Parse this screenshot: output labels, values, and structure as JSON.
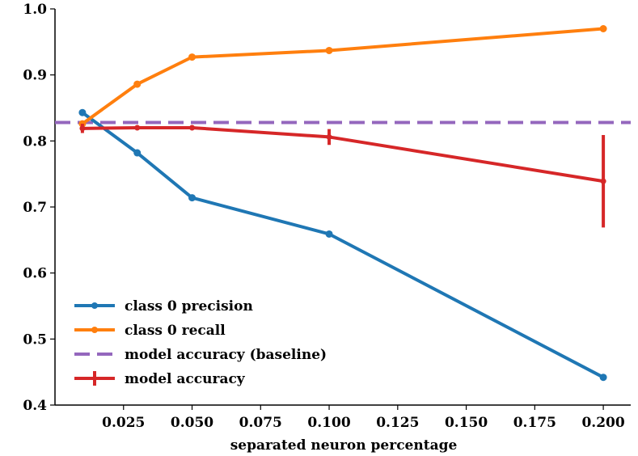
{
  "chart_data": {
    "type": "line",
    "title": "",
    "xlabel": "separated neuron percentage",
    "ylabel": "",
    "xlim": [
      0.0,
      0.21
    ],
    "ylim": [
      0.4,
      1.0
    ],
    "xticks": [
      0.025,
      0.05,
      0.075,
      0.1,
      0.125,
      0.15,
      0.175,
      0.2
    ],
    "xtick_labels": [
      "0.025",
      "0.050",
      "0.075",
      "0.100",
      "0.125",
      "0.150",
      "0.175",
      "0.200"
    ],
    "yticks": [
      0.4,
      0.5,
      0.6,
      0.7,
      0.8,
      0.9,
      1.0
    ],
    "ytick_labels": [
      "0.4",
      "0.5",
      "0.6",
      "0.7",
      "0.8",
      "0.9",
      "1.0"
    ],
    "grid": false,
    "legend_position": "bottom-left",
    "series": [
      {
        "name": "class 0 precision",
        "color": "#1f77b4",
        "style": "solid-marker",
        "x": [
          0.01,
          0.03,
          0.05,
          0.1,
          0.2
        ],
        "values": [
          0.843,
          0.782,
          0.714,
          0.659,
          0.442
        ]
      },
      {
        "name": "class 0 recall",
        "color": "#ff7f0e",
        "style": "solid-marker",
        "x": [
          0.01,
          0.03,
          0.05,
          0.1,
          0.2
        ],
        "values": [
          0.826,
          0.886,
          0.927,
          0.937,
          0.97
        ]
      },
      {
        "name": "model accuracy (baseline)",
        "color": "#9467bd",
        "style": "dashed",
        "x": [
          0.0,
          0.21
        ],
        "values": [
          0.828,
          0.828
        ]
      },
      {
        "name": "model accuracy",
        "color": "#d62728",
        "style": "errorbar",
        "x": [
          0.01,
          0.03,
          0.05,
          0.1,
          0.2
        ],
        "values": [
          0.819,
          0.82,
          0.82,
          0.806,
          0.739
        ],
        "errors": [
          0.007,
          0.002,
          0.002,
          0.012,
          0.07
        ]
      }
    ]
  }
}
